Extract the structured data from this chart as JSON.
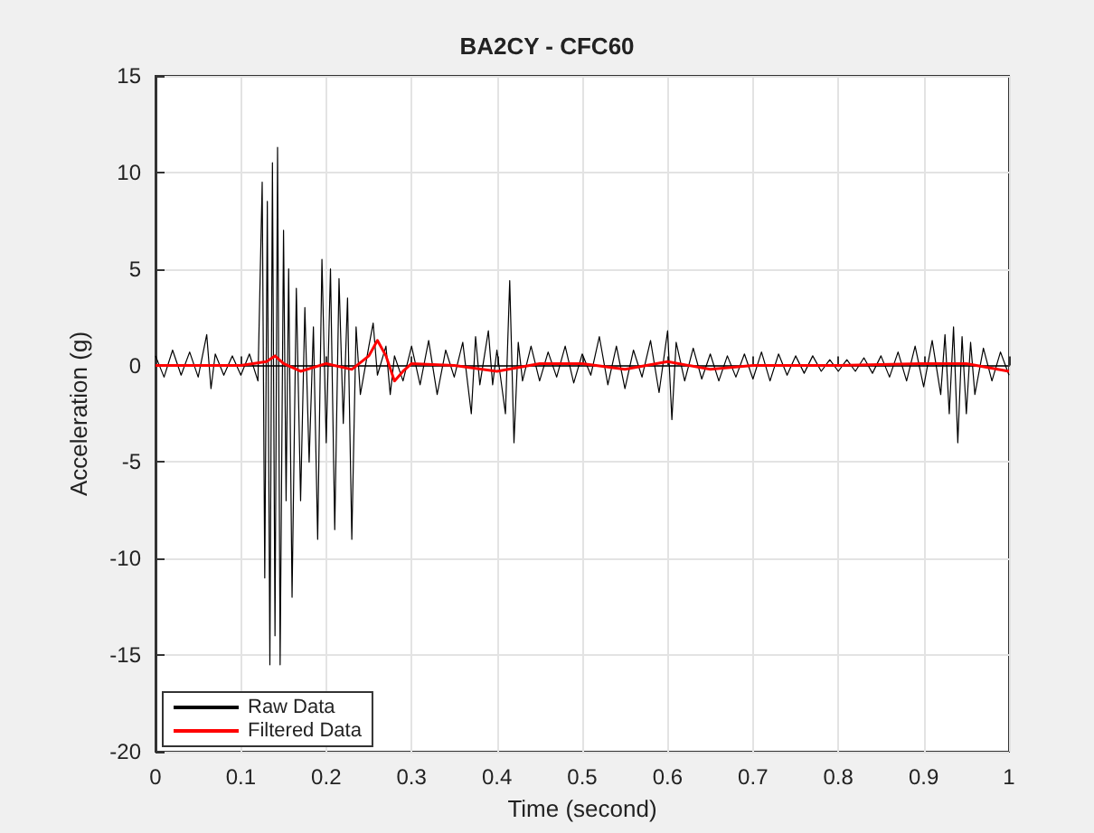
{
  "chart_data": {
    "type": "line",
    "title": "BA2CY - CFC60",
    "xlabel": "Time (second)",
    "ylabel": "Acceleration (g)",
    "xlim": [
      0,
      1
    ],
    "xticks": [
      0,
      0.1,
      0.2,
      0.3,
      0.4,
      0.5,
      0.6,
      0.7,
      0.8,
      0.9,
      1
    ],
    "ylim": [
      -20,
      15
    ],
    "yticks": [
      -20,
      -15,
      -10,
      -5,
      0,
      5,
      10,
      15
    ],
    "grid": true,
    "legend": "bottom left",
    "marker": "none",
    "line_style": "solid",
    "series": [
      {
        "name": "Raw Data",
        "color": "#000000",
        "x": [
          0,
          0.01,
          0.02,
          0.03,
          0.04,
          0.05,
          0.06,
          0.065,
          0.07,
          0.08,
          0.09,
          0.1,
          0.11,
          0.12,
          0.125,
          0.128,
          0.131,
          0.134,
          0.137,
          0.14,
          0.143,
          0.146,
          0.15,
          0.153,
          0.156,
          0.16,
          0.165,
          0.17,
          0.175,
          0.18,
          0.185,
          0.19,
          0.195,
          0.2,
          0.205,
          0.21,
          0.215,
          0.22,
          0.225,
          0.23,
          0.235,
          0.24,
          0.25,
          0.255,
          0.26,
          0.27,
          0.275,
          0.28,
          0.29,
          0.3,
          0.31,
          0.32,
          0.33,
          0.34,
          0.35,
          0.36,
          0.37,
          0.375,
          0.38,
          0.39,
          0.395,
          0.4,
          0.41,
          0.415,
          0.42,
          0.425,
          0.43,
          0.44,
          0.45,
          0.46,
          0.47,
          0.48,
          0.49,
          0.5,
          0.51,
          0.52,
          0.53,
          0.54,
          0.55,
          0.56,
          0.57,
          0.58,
          0.59,
          0.6,
          0.605,
          0.61,
          0.62,
          0.63,
          0.64,
          0.65,
          0.66,
          0.67,
          0.68,
          0.69,
          0.7,
          0.71,
          0.72,
          0.73,
          0.74,
          0.75,
          0.76,
          0.77,
          0.78,
          0.79,
          0.8,
          0.81,
          0.82,
          0.83,
          0.84,
          0.85,
          0.86,
          0.87,
          0.88,
          0.89,
          0.9,
          0.91,
          0.92,
          0.925,
          0.93,
          0.935,
          0.94,
          0.945,
          0.95,
          0.955,
          0.96,
          0.97,
          0.98,
          0.99,
          1
        ],
        "values": [
          0.5,
          -0.6,
          0.8,
          -0.5,
          0.7,
          -0.6,
          1.6,
          -1.2,
          0.6,
          -0.5,
          0.5,
          -0.5,
          0.6,
          -0.8,
          9.5,
          -11,
          8.5,
          -15.5,
          10.5,
          -14,
          11.3,
          -15.5,
          7,
          -7,
          5,
          -12,
          4,
          -7,
          3,
          -5,
          2,
          -9,
          5.5,
          -4,
          5,
          -8.5,
          4.5,
          -3,
          3.5,
          -9,
          2,
          -1.5,
          1,
          2.2,
          -0.5,
          1,
          -1.5,
          0.5,
          -0.8,
          1,
          -1,
          1.3,
          -1.5,
          0.8,
          -0.6,
          1.2,
          -2.5,
          1.5,
          -1,
          1.8,
          -1,
          0.8,
          -2.5,
          4.4,
          -4,
          1.2,
          -0.8,
          1,
          -0.8,
          0.7,
          -0.6,
          1,
          -0.9,
          0.6,
          -0.5,
          1.5,
          -1,
          1,
          -1.2,
          0.8,
          -0.6,
          1.3,
          -1.4,
          1.8,
          -2.8,
          1.2,
          -0.8,
          0.9,
          -0.7,
          0.6,
          -0.8,
          0.5,
          -0.6,
          0.6,
          -0.7,
          0.7,
          -0.8,
          0.6,
          -0.5,
          0.5,
          -0.4,
          0.5,
          -0.3,
          0.3,
          -0.3,
          0.3,
          -0.3,
          0.4,
          -0.4,
          0.5,
          -0.6,
          0.7,
          -0.8,
          1,
          -1.1,
          1.3,
          -1.5,
          1.6,
          -2.5,
          2,
          -4,
          1.5,
          -2.5,
          1.2,
          -1.5,
          0.9,
          -0.8,
          0.7,
          -0.5
        ]
      },
      {
        "name": "Filtered Data",
        "color": "#ff0000",
        "x": [
          0,
          0.1,
          0.13,
          0.14,
          0.15,
          0.17,
          0.2,
          0.23,
          0.25,
          0.26,
          0.27,
          0.28,
          0.29,
          0.3,
          0.35,
          0.4,
          0.45,
          0.5,
          0.55,
          0.6,
          0.65,
          0.7,
          0.8,
          0.9,
          0.95,
          1
        ],
        "values": [
          0,
          0,
          0.2,
          0.5,
          0.1,
          -0.3,
          0.1,
          -0.2,
          0.5,
          1.3,
          0.5,
          -0.8,
          -0.3,
          0.1,
          0,
          -0.3,
          0.1,
          0.1,
          -0.2,
          0.2,
          -0.2,
          0,
          0,
          0.1,
          0.1,
          -0.3
        ]
      }
    ]
  }
}
